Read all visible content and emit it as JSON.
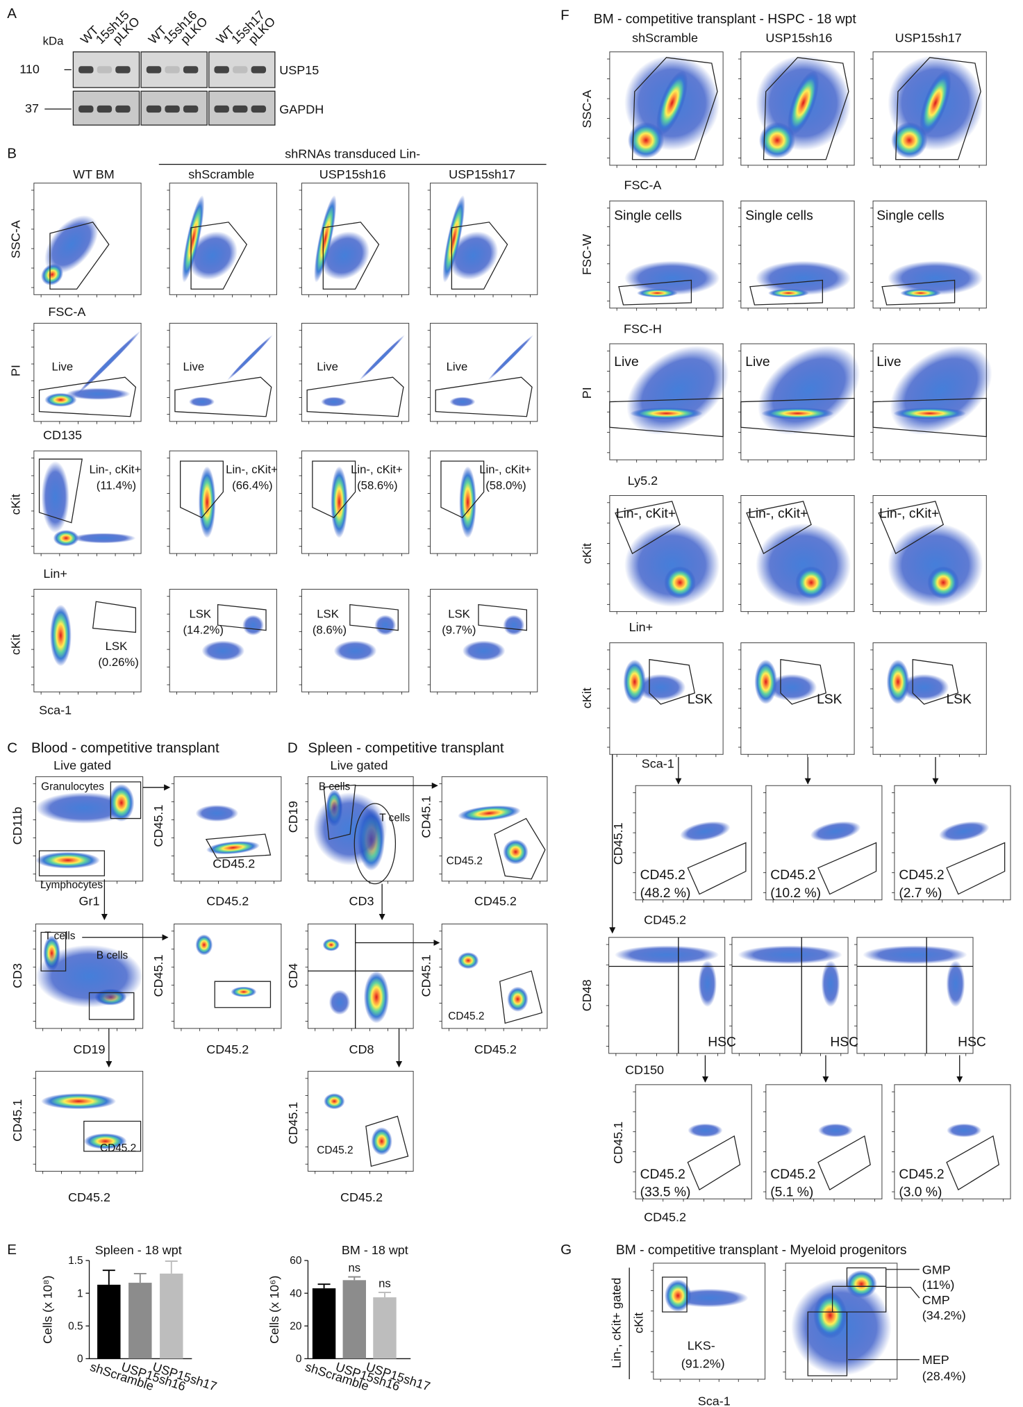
{
  "panel_a": {
    "label": "A",
    "unit": "kDa",
    "lanes": [
      "WT",
      "15sh15",
      "pLKO",
      "WT",
      "15sh16",
      "pLKO",
      "WT",
      "15sh17",
      "pLKO"
    ],
    "size_markers": [
      "110",
      "37"
    ],
    "proteins": [
      "USP15",
      "GAPDH"
    ]
  },
  "panel_b": {
    "label": "B",
    "header": "shRNAs transduced Lin-",
    "columns": [
      "WT BM",
      "shScramble",
      "USP15sh16",
      "USP15sh17"
    ],
    "axis_labels": [
      "SSC-A",
      "FSC-A",
      "PI",
      "CD135",
      "cKit",
      "Lin+",
      "cKit",
      "Sca-1"
    ],
    "gates": [
      "Live",
      "Live",
      "Live",
      "Live",
      "Lin-, cKit+",
      "(11.4%)",
      "Lin-, cKit+",
      "(66.4%)",
      "Lin-, cKit+",
      "(58.6%)",
      "Lin-, cKit+",
      "(58.0%)",
      "LSK",
      "(0.26%)",
      "LSK",
      "(14.2%)",
      "LSK",
      "(8.6%)",
      "LSK",
      "(9.7%)"
    ]
  },
  "panel_c": {
    "label": "C",
    "title": "Blood - competitive transplant",
    "subtitle": "Live gated",
    "texts": [
      "Granulocytes",
      "Lymphocytes",
      "CD11b",
      "Gr1",
      "CD45.1",
      "CD45.2",
      "CD45.2",
      "T cells",
      "B cells",
      "CD3",
      "CD19",
      "CD45.1",
      "CD45.2",
      "CD45.1",
      "CD45.2",
      "CD45.2"
    ]
  },
  "panel_d": {
    "label": "D",
    "title": "Spleen - competitive transplant",
    "subtitle": "Live gated",
    "texts": [
      "B cells",
      "T cells",
      "CD19",
      "CD3",
      "CD45.1",
      "CD45.2",
      "CD45.2",
      "CD4",
      "CD8",
      "CD45.1",
      "CD45.2",
      "CD45.2",
      "CD45.1",
      "CD45.2",
      "CD45.2"
    ]
  },
  "panel_e": {
    "label": "E",
    "charts": [
      {
        "type": "bar",
        "title": "Spleen - 18 wpt",
        "y_label": "Cells (x 10⁸)",
        "categories": [
          "shScramble",
          "USP15sh16",
          "USP15sh17"
        ],
        "values": [
          1.13,
          1.16,
          1.3
        ],
        "errors": [
          0.22,
          0.14,
          0.19
        ],
        "colors": [
          "#000000",
          "#8c8c8c",
          "#bdbdbd"
        ],
        "ylim": [
          0,
          1.5
        ],
        "yticks": [
          0,
          0.5,
          1,
          1.5
        ]
      },
      {
        "type": "bar",
        "title": "BM - 18 wpt",
        "y_label": "Cells (x 10⁶)",
        "categories": [
          "shScramble",
          "USP15sh16",
          "USP15sh17"
        ],
        "values": [
          43,
          48,
          37.5
        ],
        "errors": [
          2.5,
          2,
          3
        ],
        "colors": [
          "#000000",
          "#8c8c8c",
          "#bdbdbd"
        ],
        "ylim": [
          0,
          60
        ],
        "yticks": [
          0,
          20,
          40,
          60
        ],
        "annotations": [
          "ns",
          "ns"
        ]
      }
    ]
  },
  "panel_f": {
    "label": "F",
    "title": "BM - competitive transplant - HSPC - 18 wpt",
    "columns": [
      "shScramble",
      "USP15sh16",
      "USP15sh17"
    ],
    "axis_labels": [
      "SSC-A",
      "FSC-A",
      "FSC-W",
      "FSC-H",
      "PI",
      "Ly5.2",
      "cKit",
      "Lin+",
      "cKit",
      "Sca-1",
      "CD45.1",
      "CD45.2",
      "CD48",
      "CD150",
      "CD45.1",
      "CD45.2"
    ],
    "gates": [
      "Single cells",
      "Single cells",
      "Single cells",
      "Live",
      "Live",
      "Live",
      "Lin-, cKit+",
      "Lin-, cKit+",
      "Lin-, cKit+",
      "LSK",
      "LSK",
      "LSK",
      "CD45.2",
      "(48.2 %)",
      "CD45.2",
      "(10.2 %)",
      "CD45.2",
      "(2.7 %)",
      "HSC",
      "HSC",
      "HSC",
      "CD45.2",
      "(33.5 %)",
      "CD45.2",
      "(5.1 %)",
      "CD45.2",
      "(3.0 %)"
    ]
  },
  "panel_g": {
    "label": "G",
    "title": "BM - competitive transplant - Myeloid progenitors",
    "texts": [
      "Lin-, cKit+ gated",
      "cKit",
      "LKS-",
      "(91.2%)",
      "Sca-1",
      "GMP",
      "(11%)",
      "CMP",
      "(34.2%)",
      "MEP",
      "(28.4%)"
    ]
  }
}
